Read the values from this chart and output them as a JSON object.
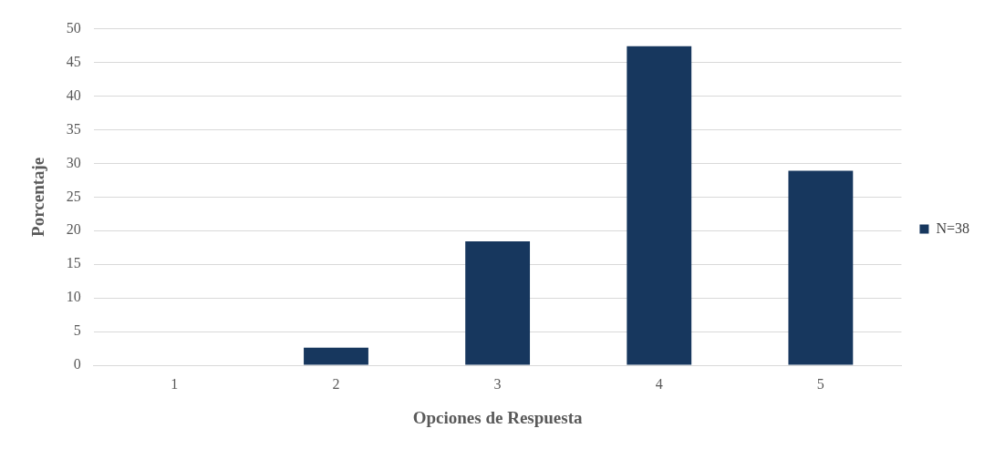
{
  "chart_data": {
    "type": "bar",
    "xlabel": "Opciones de Respuesta",
    "ylabel": "Porcentaje",
    "categories": [
      "1",
      "2",
      "3",
      "4",
      "5"
    ],
    "series": [
      {
        "name": "N=38",
        "color": "#17375e",
        "values": [
          0,
          2.6,
          18.4,
          47.4,
          28.9
        ]
      }
    ],
    "ylim": [
      0,
      50
    ],
    "yticks": [
      0,
      5,
      10,
      15,
      20,
      25,
      30,
      35,
      40,
      45,
      50
    ],
    "grid": "y",
    "legend": "right"
  }
}
